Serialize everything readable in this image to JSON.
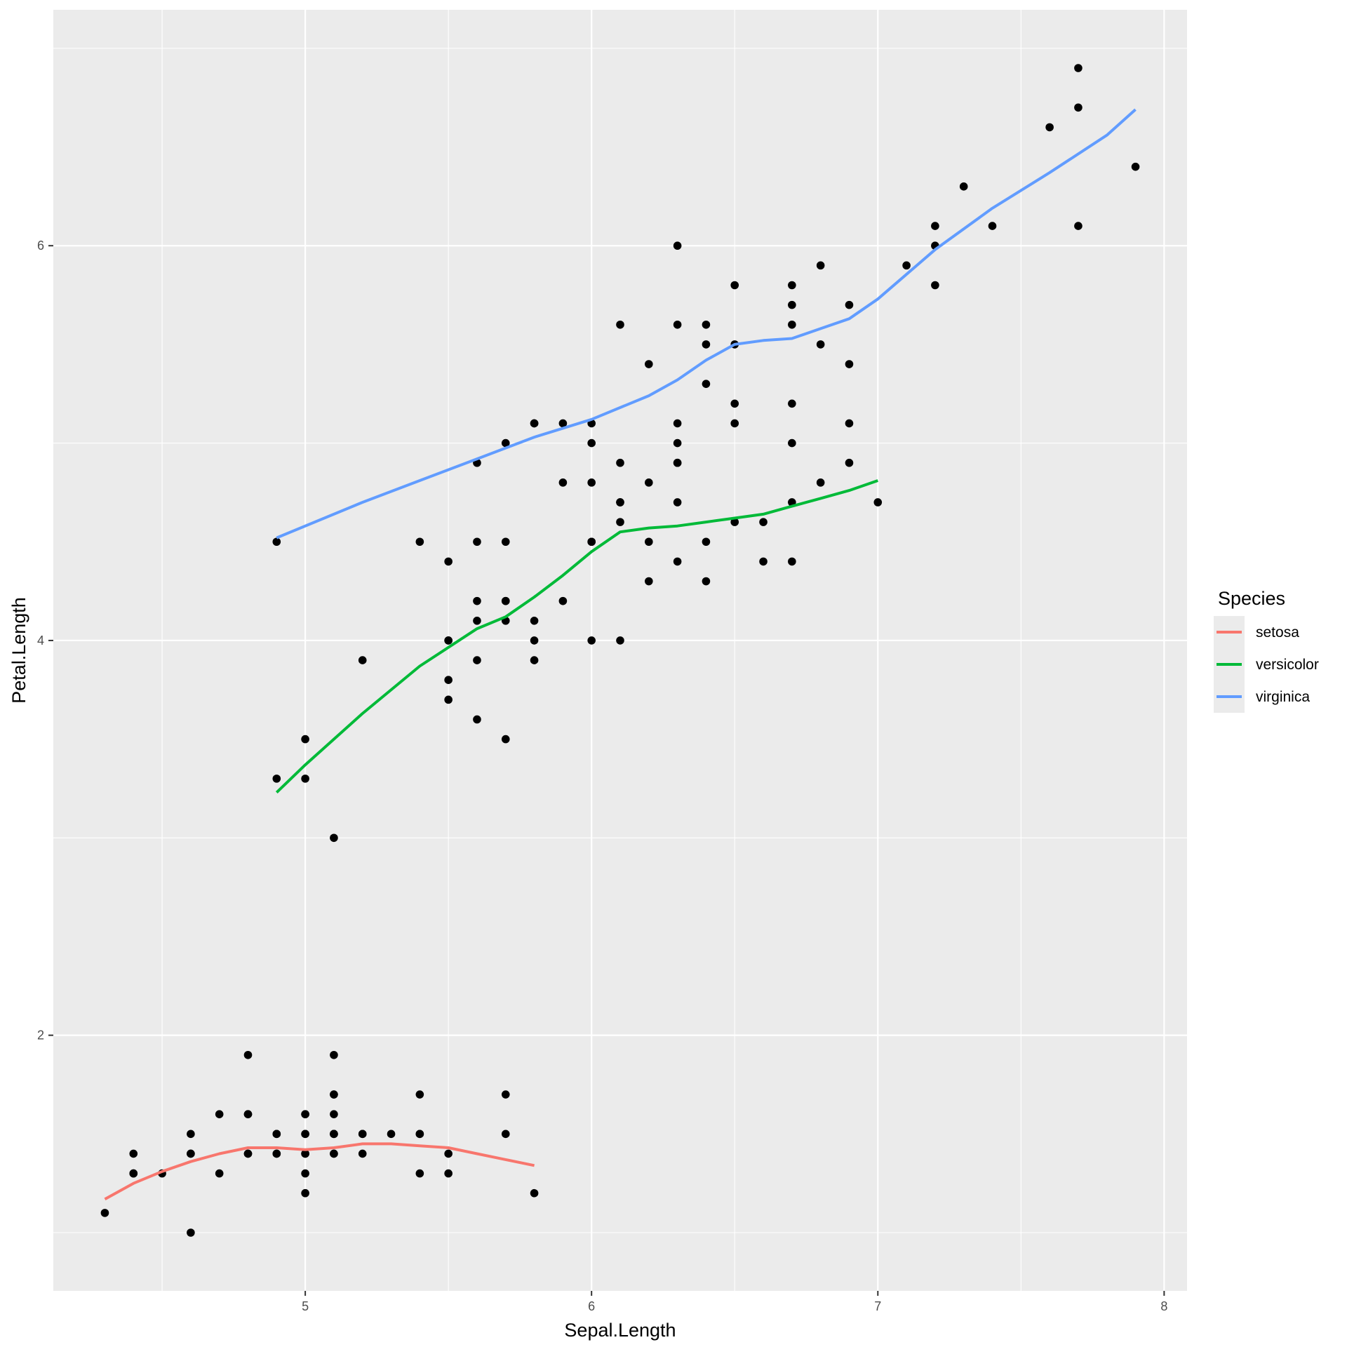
{
  "chart_data": {
    "type": "scatter",
    "xlabel": "Sepal.Length",
    "ylabel": "Petal.Length",
    "xlim": [
      4.12,
      8.08
    ],
    "ylim": [
      0.705,
      7.195
    ],
    "x_ticks": [
      5,
      6,
      7,
      8
    ],
    "y_ticks": [
      2,
      4,
      6
    ],
    "grid": true,
    "legend": {
      "title": "Species",
      "position": "right"
    },
    "points": [
      [
        4.3,
        1.1
      ],
      [
        4.4,
        1.3
      ],
      [
        4.4,
        1.4
      ],
      [
        4.4,
        1.3
      ],
      [
        4.5,
        1.3
      ],
      [
        4.6,
        1.4
      ],
      [
        4.6,
        1.0
      ],
      [
        4.6,
        1.5
      ],
      [
        4.6,
        1.4
      ],
      [
        4.7,
        1.3
      ],
      [
        4.7,
        1.6
      ],
      [
        4.8,
        1.6
      ],
      [
        4.8,
        1.4
      ],
      [
        4.8,
        1.4
      ],
      [
        4.8,
        1.9
      ],
      [
        4.8,
        1.6
      ],
      [
        4.9,
        1.4
      ],
      [
        4.9,
        1.5
      ],
      [
        4.9,
        1.4
      ],
      [
        4.9,
        1.5
      ],
      [
        5.0,
        1.4
      ],
      [
        5.0,
        1.5
      ],
      [
        5.0,
        1.6
      ],
      [
        5.0,
        1.2
      ],
      [
        5.0,
        1.3
      ],
      [
        5.0,
        1.6
      ],
      [
        5.0,
        1.4
      ],
      [
        5.0,
        1.5
      ],
      [
        5.1,
        1.4
      ],
      [
        5.1,
        1.4
      ],
      [
        5.1,
        1.5
      ],
      [
        5.1,
        1.7
      ],
      [
        5.1,
        1.5
      ],
      [
        5.1,
        1.7
      ],
      [
        5.1,
        1.5
      ],
      [
        5.1,
        1.9
      ],
      [
        5.1,
        1.6
      ],
      [
        5.2,
        1.5
      ],
      [
        5.2,
        1.4
      ],
      [
        5.2,
        1.5
      ],
      [
        5.3,
        1.5
      ],
      [
        5.4,
        1.7
      ],
      [
        5.4,
        1.5
      ],
      [
        5.4,
        1.5
      ],
      [
        5.4,
        1.3
      ],
      [
        5.5,
        1.4
      ],
      [
        5.5,
        1.3
      ],
      [
        5.7,
        1.5
      ],
      [
        5.7,
        1.7
      ],
      [
        5.8,
        1.2
      ],
      [
        4.9,
        3.3
      ],
      [
        5.0,
        3.5
      ],
      [
        5.0,
        3.3
      ],
      [
        5.1,
        3.0
      ],
      [
        5.2,
        3.9
      ],
      [
        5.4,
        4.5
      ],
      [
        5.5,
        4.0
      ],
      [
        5.5,
        4.4
      ],
      [
        5.5,
        3.8
      ],
      [
        5.5,
        3.7
      ],
      [
        5.5,
        4.0
      ],
      [
        5.6,
        4.5
      ],
      [
        5.6,
        3.6
      ],
      [
        5.6,
        3.9
      ],
      [
        5.6,
        4.2
      ],
      [
        5.6,
        4.1
      ],
      [
        5.7,
        4.5
      ],
      [
        5.7,
        4.2
      ],
      [
        5.7,
        4.2
      ],
      [
        5.7,
        3.5
      ],
      [
        5.7,
        4.1
      ],
      [
        5.8,
        4.1
      ],
      [
        5.8,
        4.0
      ],
      [
        5.8,
        3.9
      ],
      [
        5.9,
        4.8
      ],
      [
        5.9,
        4.2
      ],
      [
        6.0,
        4.5
      ],
      [
        6.0,
        5.1
      ],
      [
        6.0,
        4.0
      ],
      [
        6.0,
        4.5
      ],
      [
        6.1,
        4.7
      ],
      [
        6.1,
        4.0
      ],
      [
        6.1,
        4.7
      ],
      [
        6.1,
        4.6
      ],
      [
        6.2,
        4.5
      ],
      [
        6.2,
        4.3
      ],
      [
        6.3,
        4.9
      ],
      [
        6.3,
        4.4
      ],
      [
        6.3,
        4.7
      ],
      [
        6.4,
        4.5
      ],
      [
        6.4,
        4.3
      ],
      [
        6.5,
        4.6
      ],
      [
        6.6,
        4.6
      ],
      [
        6.6,
        4.4
      ],
      [
        6.7,
        4.4
      ],
      [
        6.7,
        4.7
      ],
      [
        6.7,
        5.0
      ],
      [
        6.8,
        4.8
      ],
      [
        6.9,
        4.9
      ],
      [
        7.0,
        4.7
      ],
      [
        4.9,
        4.5
      ],
      [
        5.6,
        4.9
      ],
      [
        5.7,
        5.0
      ],
      [
        5.8,
        5.1
      ],
      [
        5.8,
        5.1
      ],
      [
        5.9,
        5.1
      ],
      [
        6.0,
        5.0
      ],
      [
        6.0,
        4.8
      ],
      [
        6.1,
        5.6
      ],
      [
        6.1,
        4.9
      ],
      [
        6.2,
        5.4
      ],
      [
        6.2,
        4.8
      ],
      [
        6.3,
        6.0
      ],
      [
        6.3,
        5.1
      ],
      [
        6.3,
        5.6
      ],
      [
        6.3,
        4.9
      ],
      [
        6.3,
        5.0
      ],
      [
        6.4,
        5.3
      ],
      [
        6.4,
        5.5
      ],
      [
        6.4,
        5.6
      ],
      [
        6.5,
        5.8
      ],
      [
        6.5,
        5.5
      ],
      [
        6.5,
        5.2
      ],
      [
        6.5,
        5.1
      ],
      [
        6.7,
        5.8
      ],
      [
        6.7,
        5.7
      ],
      [
        6.7,
        5.6
      ],
      [
        6.7,
        5.2
      ],
      [
        6.8,
        5.9
      ],
      [
        6.8,
        5.5
      ],
      [
        6.9,
        5.7
      ],
      [
        6.9,
        5.4
      ],
      [
        6.9,
        5.1
      ],
      [
        7.1,
        5.9
      ],
      [
        7.2,
        6.1
      ],
      [
        7.2,
        6.0
      ],
      [
        7.2,
        5.8
      ],
      [
        7.3,
        6.3
      ],
      [
        7.4,
        6.1
      ],
      [
        7.6,
        6.6
      ],
      [
        7.7,
        6.7
      ],
      [
        7.7,
        6.9
      ],
      [
        7.7,
        6.1
      ],
      [
        7.9,
        6.4
      ]
    ],
    "series": [
      {
        "name": "setosa",
        "color": "#F8766D",
        "x": [
          4.3,
          4.4,
          4.5,
          4.6,
          4.7,
          4.8,
          4.9,
          5.0,
          5.1,
          5.2,
          5.3,
          5.4,
          5.5,
          5.6,
          5.7,
          5.8
        ],
        "y": [
          1.17,
          1.25,
          1.31,
          1.36,
          1.4,
          1.43,
          1.43,
          1.42,
          1.43,
          1.45,
          1.45,
          1.44,
          1.43,
          1.4,
          1.37,
          1.34
        ]
      },
      {
        "name": "versicolor",
        "color": "#00BA38",
        "x": [
          4.9,
          5.0,
          5.2,
          5.4,
          5.6,
          5.7,
          5.8,
          5.9,
          6.0,
          6.1,
          6.2,
          6.3,
          6.4,
          6.5,
          6.6,
          6.7,
          6.8,
          6.9,
          7.0
        ],
        "y": [
          3.23,
          3.37,
          3.63,
          3.87,
          4.06,
          4.12,
          4.22,
          4.33,
          4.45,
          4.55,
          4.57,
          4.58,
          4.6,
          4.62,
          4.64,
          4.68,
          4.72,
          4.76,
          4.81
        ]
      },
      {
        "name": "virginica",
        "color": "#619CFF",
        "x": [
          4.9,
          5.2,
          5.4,
          5.6,
          5.8,
          6.0,
          6.2,
          6.3,
          6.4,
          6.5,
          6.6,
          6.7,
          6.8,
          6.9,
          7.0,
          7.2,
          7.4,
          7.6,
          7.8,
          7.9
        ],
        "y": [
          4.52,
          4.7,
          4.81,
          4.92,
          5.03,
          5.12,
          5.24,
          5.32,
          5.42,
          5.5,
          5.52,
          5.53,
          5.58,
          5.63,
          5.73,
          5.98,
          6.19,
          6.37,
          6.56,
          6.69
        ]
      }
    ]
  }
}
